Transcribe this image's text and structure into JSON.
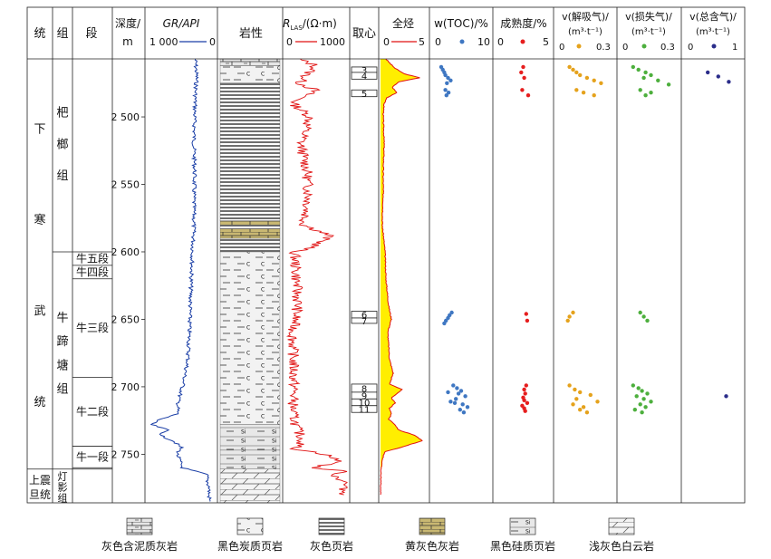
{
  "chart_data": {
    "type": "well-log",
    "headers": {
      "system": "统",
      "formation": "组",
      "member": "段",
      "depth": "深度/",
      "depth_unit": "m",
      "gr_label": "GR/API",
      "gr_left": "1 000",
      "gr_right": "0",
      "lithology": "岩性",
      "rlas_label": "R",
      "rlas_sub": "LAS",
      "rlas_unit": "/(Ω·m)",
      "rlas_left": "0",
      "rlas_right": "1000",
      "core": "取心",
      "tg": "全烃",
      "tg_left": "0",
      "tg_right": "5",
      "toc_label": "w(TOC)/%",
      "toc_left": "0",
      "toc_right": "10",
      "maturity_label": "成熟度/%",
      "mat_left": "0",
      "mat_right": "5",
      "desorbed_label": "v(解吸气)/",
      "desorbed_unit": "(m³·t⁻¹)",
      "desorbed_left": "0",
      "desorbed_right": "0.3",
      "lost_label": "v(损失气)/",
      "lost_unit": "(m³·t⁻¹)",
      "lost_left": "0",
      "lost_right": "0.3",
      "total_label": "v(总含气)/",
      "total_unit": "(m³·t⁻¹)",
      "total_left": "0",
      "total_right": "1"
    },
    "depth_ticks": [
      2500,
      2550,
      2600,
      2650,
      2700,
      2750
    ],
    "depth_tick_labels": [
      "2 500",
      "2 550",
      "2 600",
      "2 650",
      "2 700",
      "2 750"
    ],
    "depth_range": [
      2457,
      2786
    ],
    "strat": {
      "lower_cambrian": "下寒武统",
      "upper_sinian": "上震旦统",
      "bali": "杷榔组",
      "niuti": "牛蹄塘组",
      "dengying": "灯影组",
      "members": [
        {
          "name": "牛五段",
          "top": 2600,
          "bottom": 2610
        },
        {
          "name": "牛四段",
          "top": 2610,
          "bottom": 2620
        },
        {
          "name": "牛三段",
          "top": 2620,
          "bottom": 2693
        },
        {
          "name": "牛二段",
          "top": 2693,
          "bottom": 2744
        },
        {
          "name": "牛一段",
          "top": 2744,
          "bottom": 2760
        }
      ]
    },
    "lithology_intervals": [
      {
        "top": 2457,
        "bottom": 2462,
        "type": "muddy-limestone"
      },
      {
        "top": 2462,
        "bottom": 2475,
        "type": "carbonaceous-shale"
      },
      {
        "top": 2475,
        "bottom": 2497,
        "type": "gray-shale"
      },
      {
        "top": 2497,
        "bottom": 2577,
        "type": "gray-shale"
      },
      {
        "top": 2577,
        "bottom": 2580,
        "type": "yellow-limestone"
      },
      {
        "top": 2580,
        "bottom": 2583,
        "type": "gray-shale"
      },
      {
        "top": 2583,
        "bottom": 2590,
        "type": "yellow-limestone"
      },
      {
        "top": 2590,
        "bottom": 2600,
        "type": "gray-shale"
      },
      {
        "top": 2600,
        "bottom": 2728,
        "type": "carbonaceous-shale"
      },
      {
        "top": 2728,
        "bottom": 2747,
        "type": "siliceous-shale"
      },
      {
        "top": 2747,
        "bottom": 2761,
        "type": "siliceous-shale"
      },
      {
        "top": 2761,
        "bottom": 2786,
        "type": "dolomite"
      }
    ],
    "core_intervals": [
      {
        "label": "3",
        "top": 2463,
        "bottom": 2467
      },
      {
        "label": "4",
        "top": 2467,
        "bottom": 2472
      },
      {
        "label": "5",
        "top": 2480,
        "bottom": 2485
      },
      {
        "label": "6",
        "top": 2644,
        "bottom": 2649
      },
      {
        "label": "7",
        "top": 2649,
        "bottom": 2653
      },
      {
        "label": "8",
        "top": 2698,
        "bottom": 2704
      },
      {
        "label": "9",
        "top": 2704,
        "bottom": 2709
      },
      {
        "label": "10",
        "top": 2709,
        "bottom": 2714
      },
      {
        "label": "11",
        "top": 2714,
        "bottom": 2719
      }
    ],
    "series": [
      {
        "name": "GR",
        "min": 0,
        "max": 1000,
        "reversed": true,
        "color": "#1a3ea6",
        "depth": [
          2457,
          2470,
          2485,
          2500,
          2520,
          2540,
          2560,
          2580,
          2600,
          2620,
          2640,
          2660,
          2680,
          2690,
          2700,
          2710,
          2720,
          2725,
          2728,
          2732,
          2736,
          2740,
          2745,
          2750,
          2755,
          2760,
          2765,
          2770,
          2775,
          2780,
          2785
        ],
        "values": [
          290,
          270,
          290,
          300,
          310,
          300,
          310,
          310,
          330,
          350,
          365,
          380,
          400,
          440,
          480,
          540,
          560,
          860,
          950,
          700,
          820,
          620,
          500,
          560,
          520,
          480,
          120,
          110,
          80,
          90,
          70
        ]
      },
      {
        "name": "RLAS",
        "min": 0,
        "max": 1000,
        "color": "#e01010",
        "depth": [
          2457,
          2462,
          2468,
          2475,
          2480,
          2490,
          2500,
          2520,
          2540,
          2560,
          2580,
          2588,
          2596,
          2600,
          2620,
          2640,
          2660,
          2680,
          2700,
          2720,
          2730,
          2740,
          2746,
          2750,
          2756,
          2760,
          2762,
          2766,
          2770,
          2780
        ],
        "values": [
          200,
          500,
          360,
          230,
          480,
          120,
          400,
          250,
          350,
          380,
          300,
          720,
          460,
          150,
          180,
          200,
          120,
          130,
          140,
          120,
          180,
          280,
          160,
          650,
          900,
          400,
          950,
          800,
          960,
          950
        ]
      },
      {
        "name": "TG",
        "min": 0,
        "max": 5,
        "color": "#e01010",
        "fill": "#ffee00",
        "depth": [
          2457,
          2460,
          2464,
          2468,
          2471,
          2474,
          2478,
          2482,
          2486,
          2490,
          2500,
          2520,
          2540,
          2560,
          2580,
          2600,
          2620,
          2640,
          2650,
          2660,
          2680,
          2690,
          2698,
          2702,
          2708,
          2712,
          2716,
          2720,
          2724,
          2728,
          2732,
          2736,
          2740,
          2745,
          2748,
          2752,
          2758,
          2765,
          2780
        ],
        "values": [
          0.6,
          1.0,
          1.6,
          2.6,
          4.3,
          2.0,
          1.3,
          1.8,
          0.7,
          0.4,
          0.3,
          0.4,
          0.3,
          0.3,
          0.2,
          0.5,
          0.6,
          0.9,
          1.2,
          0.8,
          1.0,
          1.4,
          1.0,
          2.4,
          1.2,
          1.6,
          1.0,
          1.2,
          0.9,
          1.6,
          2.0,
          3.8,
          4.6,
          2.2,
          0.5,
          0.3,
          0.1,
          0.05,
          0.0
        ]
      },
      {
        "name": "TOC",
        "min": 0,
        "max": 10,
        "color": "#3f77c2",
        "depth": [
          2463,
          2465,
          2467,
          2469,
          2471,
          2473,
          2475,
          2480,
          2482,
          2484,
          2645,
          2647,
          2649,
          2651,
          2653,
          2699,
          2701,
          2703,
          2705,
          2707,
          2709,
          2711,
          2713,
          2715,
          2717,
          2719,
          2704,
          2712
        ],
        "values": [
          1.2,
          1.5,
          1.8,
          2.0,
          2.5,
          3.0,
          2.3,
          2.0,
          2.6,
          2.2,
          3.2,
          2.8,
          2.5,
          2.1,
          1.8,
          3.5,
          4.2,
          5.0,
          4.5,
          5.8,
          4.0,
          3.0,
          5.3,
          6.2,
          4.8,
          5.5,
          2.5,
          3.8
        ]
      },
      {
        "name": "Maturity",
        "min": 0,
        "max": 5,
        "color": "#e61e1e",
        "depth": [
          2463,
          2467,
          2471,
          2480,
          2484,
          2646,
          2651,
          2699,
          2702,
          2705,
          2708,
          2710,
          2712,
          2714,
          2716,
          2718
        ],
        "values": [
          2.5,
          2.3,
          2.6,
          2.4,
          3.0,
          2.8,
          2.9,
          2.8,
          2.6,
          2.7,
          2.5,
          2.6,
          2.9,
          2.4,
          2.6,
          2.7
        ]
      },
      {
        "name": "DesorbedGas",
        "min": 0,
        "max": 0.3,
        "color": "#e5a21c",
        "depth": [
          2463,
          2465,
          2467,
          2469,
          2471,
          2473,
          2475,
          2480,
          2482,
          2484,
          2645,
          2648,
          2651,
          2699,
          2702,
          2704,
          2706,
          2709,
          2711,
          2713,
          2715,
          2717,
          2719
        ],
        "values": [
          0.06,
          0.08,
          0.1,
          0.12,
          0.16,
          0.2,
          0.24,
          0.1,
          0.14,
          0.2,
          0.08,
          0.06,
          0.05,
          0.06,
          0.09,
          0.12,
          0.18,
          0.1,
          0.22,
          0.08,
          0.14,
          0.12,
          0.16
        ]
      },
      {
        "name": "LostGas",
        "min": 0,
        "max": 0.3,
        "color": "#4daf3d",
        "depth": [
          2463,
          2465,
          2467,
          2469,
          2471,
          2473,
          2476,
          2480,
          2482,
          2484,
          2645,
          2648,
          2651,
          2699,
          2701,
          2703,
          2705,
          2707,
          2709,
          2711,
          2713,
          2715,
          2717,
          2719
        ],
        "values": [
          0.06,
          0.09,
          0.13,
          0.16,
          0.12,
          0.2,
          0.26,
          0.1,
          0.16,
          0.13,
          0.1,
          0.12,
          0.14,
          0.06,
          0.09,
          0.11,
          0.14,
          0.08,
          0.12,
          0.16,
          0.1,
          0.13,
          0.07,
          0.11
        ]
      },
      {
        "name": "TotalGas",
        "min": 0,
        "max": 1,
        "color": "#2b2d8a",
        "depth": [
          2467,
          2470,
          2474,
          2707
        ],
        "values": [
          0.4,
          0.6,
          0.8,
          0.75
        ]
      }
    ],
    "legend": [
      {
        "type": "muddy-limestone",
        "label": "灰色含泥质灰岩"
      },
      {
        "type": "carbonaceous-shale",
        "label": "黑色炭质页岩"
      },
      {
        "type": "gray-shale",
        "label": "灰色页岩"
      },
      {
        "type": "yellow-limestone",
        "label": "黄灰色灰岩"
      },
      {
        "type": "siliceous-shale",
        "label": "黑色硅质页岩"
      },
      {
        "type": "dolomite",
        "label": "浅灰色白云岩"
      }
    ]
  }
}
